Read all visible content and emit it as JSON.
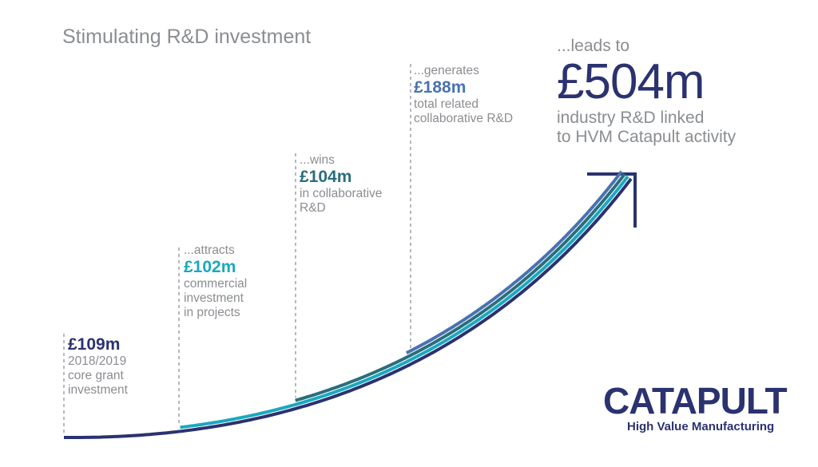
{
  "header": {
    "title": "Stimulating R&D investment"
  },
  "stages": [
    {
      "amount": "£109m",
      "lines": [
        "2018/2019",
        "core grant",
        "investment"
      ]
    },
    {
      "verb": "...attracts",
      "amount": "£102m",
      "lines": [
        "commercial",
        "investment",
        "in projects"
      ]
    },
    {
      "verb": "...wins",
      "amount": "£104m",
      "lines": [
        "in collaborative",
        "R&D"
      ]
    },
    {
      "verb": "...generates",
      "amount": "£188m",
      "lines": [
        "total related",
        "collaborative R&D"
      ]
    }
  ],
  "result": {
    "verb": "...leads to",
    "amount": "£504m",
    "lines": [
      "industry R&D linked",
      "to HVM Catapult activity"
    ]
  },
  "logo": {
    "name": "CATAPULT",
    "tagline": "High Value Manufacturing"
  }
}
